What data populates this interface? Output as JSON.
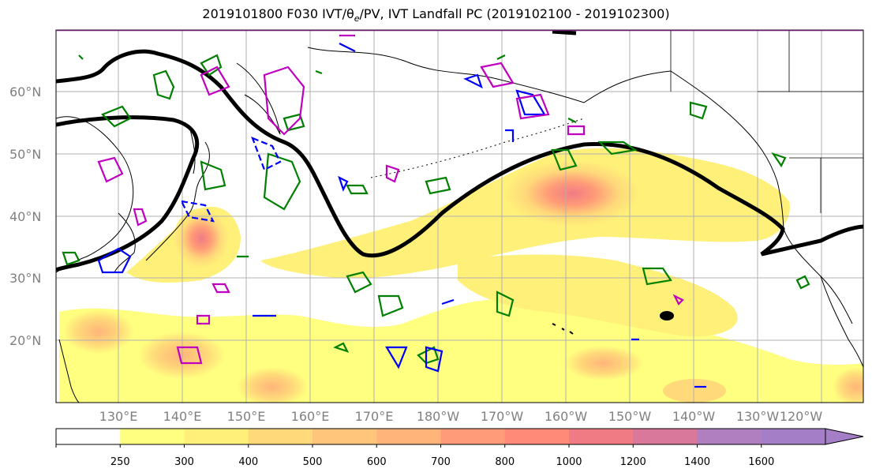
{
  "title": "2019101800 F030 IVT/θe/PV, IVT Landfall PC (2019102100 - 2019102300)",
  "map": {
    "lat_labels": [
      "60°N",
      "50°N",
      "40°N",
      "30°N",
      "20°N"
    ],
    "lon_labels": [
      "130°E",
      "140°E",
      "150°E",
      "160°E",
      "170°E",
      "180°W",
      "170°W",
      "160°W",
      "150°W",
      "140°W",
      "130°W",
      "120°W"
    ],
    "lat_values": [
      60,
      50,
      40,
      30,
      20
    ],
    "lon_values": [
      130,
      140,
      150,
      160,
      170,
      180,
      190,
      200,
      210,
      220,
      230,
      240
    ]
  },
  "colorbar": {
    "levels": [
      "250",
      "300",
      "400",
      "500",
      "600",
      "700",
      "800",
      "1000",
      "1200",
      "1400",
      "1600"
    ],
    "colors": [
      "#ffffff",
      "#ffff80",
      "#fff079",
      "#ffd97a",
      "#ffc57a",
      "#ffb57a",
      "#ff9b78",
      "#ff8a78",
      "#f07b84",
      "#d9789a",
      "#b07fc0",
      "#a57ec8"
    ]
  },
  "contour_colors": {
    "ivt_landfall_pc": "#000000",
    "theta_e": "#008000",
    "pv": "#0000ff",
    "magenta": "#c000c0"
  }
}
